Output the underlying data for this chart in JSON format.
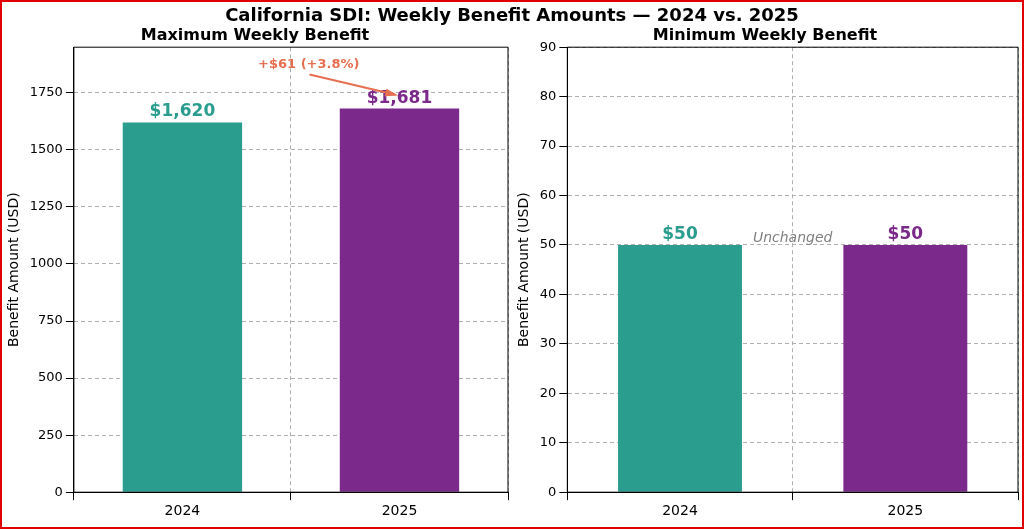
{
  "chart_data": [
    {
      "type": "bar",
      "title": "California SDI: Weekly Benefit Amounts — 2024 vs. 2025",
      "subtitle": "Maximum Weekly Benefit",
      "ylabel": "Benefit Amount (USD)",
      "categories": [
        "2024",
        "2025"
      ],
      "values": [
        1620,
        1681
      ],
      "colors": [
        "#2a9d8f",
        "#7b2a8b"
      ],
      "value_labels": [
        "$1,620",
        "$1,681"
      ],
      "ylim": [
        0,
        1950
      ],
      "yticks": [
        0,
        250,
        500,
        750,
        1000,
        1250,
        1500,
        1750
      ],
      "grid": true,
      "legend": false,
      "annotations": [
        "+$61 (+3.8%)"
      ]
    },
    {
      "type": "bar",
      "subtitle": "Minimum Weekly Benefit",
      "ylabel": "Benefit Amount (USD)",
      "categories": [
        "2024",
        "2025"
      ],
      "values": [
        50,
        50
      ],
      "colors": [
        "#2a9d8f",
        "#7b2a8b"
      ],
      "value_labels": [
        "$50",
        "$50"
      ],
      "ylim": [
        0,
        90
      ],
      "yticks": [
        0,
        10,
        20,
        30,
        40,
        50,
        60,
        70,
        80,
        90
      ],
      "grid": true,
      "legend": false,
      "annotations": [
        "Unchanged"
      ]
    }
  ]
}
